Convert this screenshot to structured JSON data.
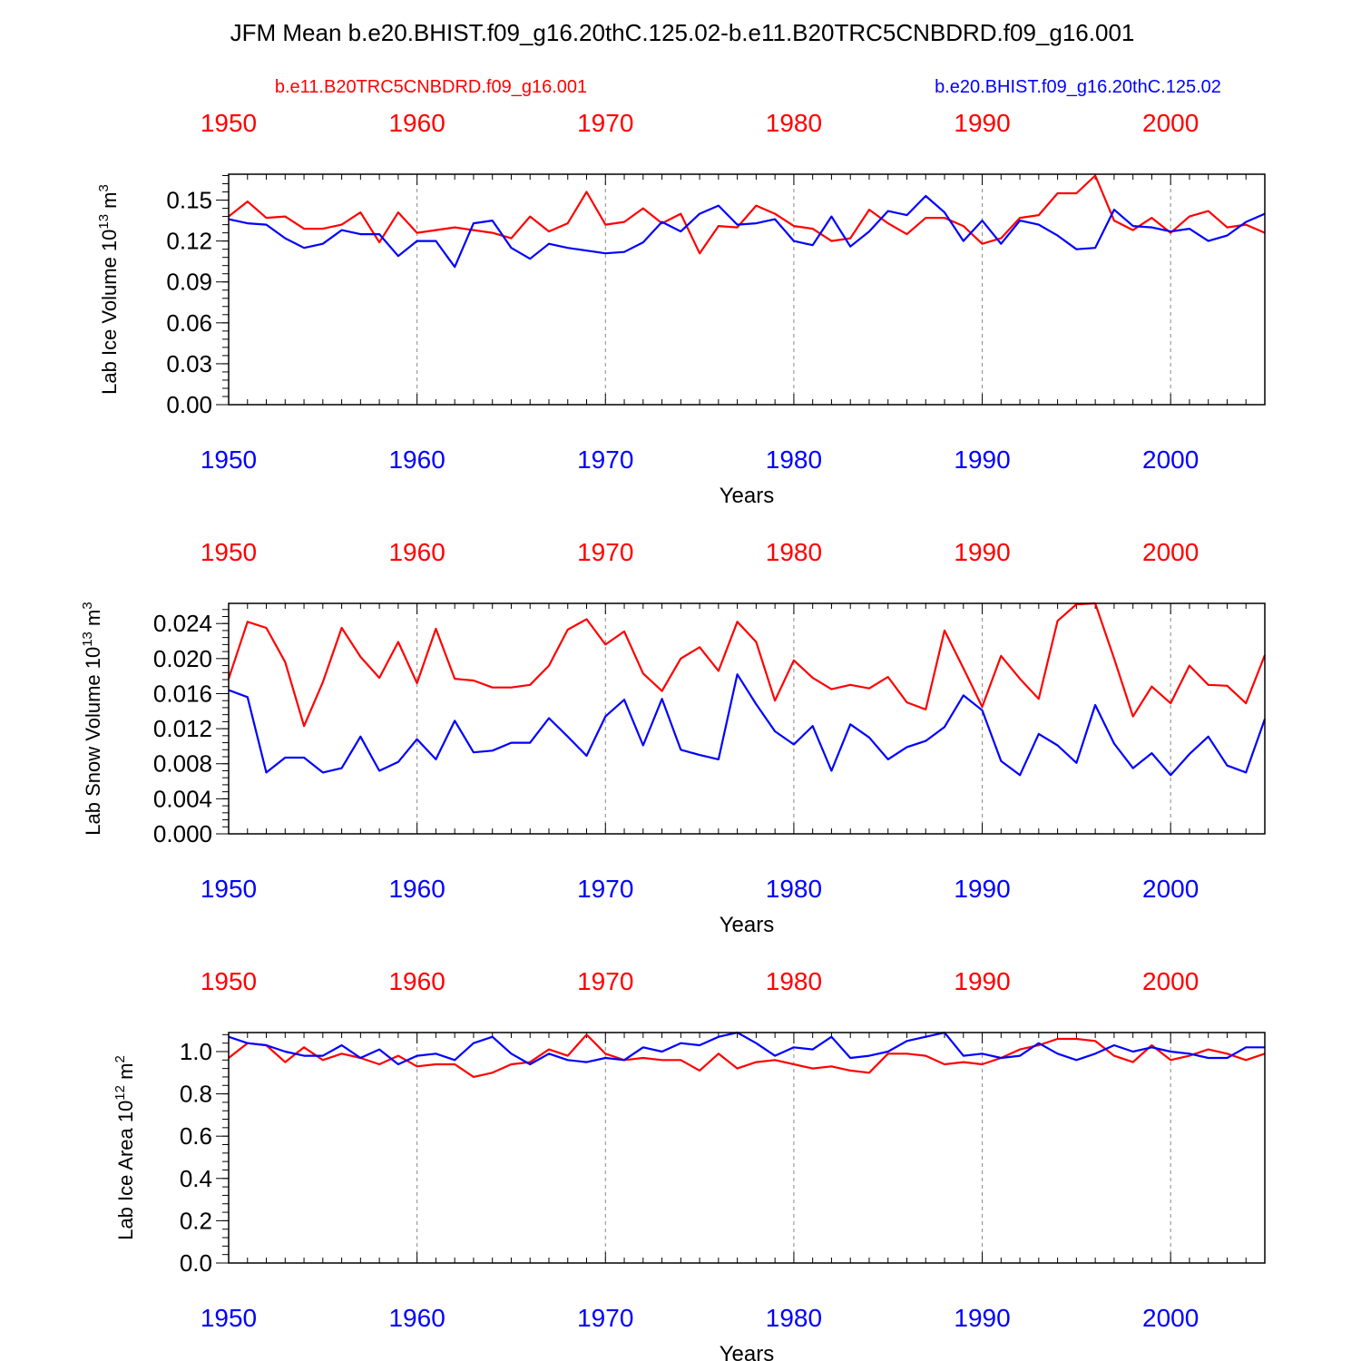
{
  "title": "JFM Mean b.e20.BHIST.f09_g16.20thC.125.02-b.e11.B20TRC5CNBDRD.f09_g16.001",
  "legend": {
    "left": {
      "label": "b.e11.B20TRC5CNBDRD.f09_g16.001",
      "color": "#ff0000"
    },
    "right": {
      "label": "b.e20.BHIST.f09_g16.20thC.125.02",
      "color": "#0000ff"
    }
  },
  "chart_data": [
    {
      "type": "line",
      "xlabel": "Years",
      "ylabel_text": "Lab Ice Volume 10",
      "ylabel_exp": "13",
      "ylabel_unit": " m",
      "ylabel_unit_exp": "3",
      "xlim": [
        1950,
        2005
      ],
      "ylim": [
        0.0,
        0.169
      ],
      "yticks": [
        0.0,
        0.03,
        0.06,
        0.09,
        0.12,
        0.15
      ],
      "ytick_labels": [
        "0.00",
        "0.03",
        "0.06",
        "0.09",
        "0.12",
        "0.15"
      ],
      "yminor_step": 0.006,
      "x_years": [
        1950,
        1951,
        1952,
        1953,
        1954,
        1955,
        1956,
        1957,
        1958,
        1959,
        1960,
        1961,
        1962,
        1963,
        1964,
        1965,
        1966,
        1967,
        1968,
        1969,
        1970,
        1971,
        1972,
        1973,
        1974,
        1975,
        1976,
        1977,
        1978,
        1979,
        1980,
        1981,
        1982,
        1983,
        1984,
        1985,
        1986,
        1987,
        1988,
        1989,
        1990,
        1991,
        1992,
        1993,
        1994,
        1995,
        1996,
        1997,
        1998,
        1999,
        2000,
        2001,
        2002,
        2003,
        2004,
        2005
      ],
      "series": [
        {
          "name": "b.e11.B20TRC5CNBDRD.f09_g16.001",
          "color": "#ff0000",
          "values": [
            0.138,
            0.149,
            0.137,
            0.138,
            0.129,
            0.129,
            0.132,
            0.141,
            0.119,
            0.141,
            0.126,
            0.128,
            0.13,
            0.128,
            0.126,
            0.122,
            0.138,
            0.127,
            0.133,
            0.156,
            0.132,
            0.134,
            0.144,
            0.133,
            0.14,
            0.111,
            0.131,
            0.13,
            0.146,
            0.14,
            0.131,
            0.129,
            0.12,
            0.122,
            0.143,
            0.133,
            0.125,
            0.137,
            0.137,
            0.131,
            0.118,
            0.122,
            0.137,
            0.139,
            0.155,
            0.155,
            0.168,
            0.135,
            0.128,
            0.137,
            0.126,
            0.138,
            0.142,
            0.13,
            0.132,
            0.126
          ]
        },
        {
          "name": "b.e20.BHIST.f09_g16.20thC.125.02",
          "color": "#0000ff",
          "values": [
            0.136,
            0.133,
            0.132,
            0.122,
            0.115,
            0.118,
            0.128,
            0.125,
            0.125,
            0.109,
            0.12,
            0.12,
            0.101,
            0.133,
            0.135,
            0.115,
            0.107,
            0.118,
            0.115,
            0.113,
            0.111,
            0.112,
            0.119,
            0.134,
            0.127,
            0.14,
            0.146,
            0.132,
            0.133,
            0.136,
            0.12,
            0.117,
            0.138,
            0.116,
            0.127,
            0.142,
            0.139,
            0.153,
            0.141,
            0.12,
            0.135,
            0.118,
            0.135,
            0.132,
            0.124,
            0.114,
            0.115,
            0.143,
            0.131,
            0.13,
            0.127,
            0.129,
            0.12,
            0.124,
            0.134,
            0.14
          ]
        }
      ]
    },
    {
      "type": "line",
      "xlabel": "Years",
      "ylabel_text": "Lab Snow Volume 10",
      "ylabel_exp": "13",
      "ylabel_unit": " m",
      "ylabel_unit_exp": "3",
      "xlim": [
        1950,
        2005
      ],
      "ylim": [
        0.0,
        0.0263
      ],
      "yticks": [
        0.0,
        0.004,
        0.008,
        0.012,
        0.016,
        0.02,
        0.024
      ],
      "ytick_labels": [
        "0.000",
        "0.004",
        "0.008",
        "0.012",
        "0.016",
        "0.020",
        "0.024"
      ],
      "yminor_step": 0.0008,
      "x_years": [
        1950,
        1951,
        1952,
        1953,
        1954,
        1955,
        1956,
        1957,
        1958,
        1959,
        1960,
        1961,
        1962,
        1963,
        1964,
        1965,
        1966,
        1967,
        1968,
        1969,
        1970,
        1971,
        1972,
        1973,
        1974,
        1975,
        1976,
        1977,
        1978,
        1979,
        1980,
        1981,
        1982,
        1983,
        1984,
        1985,
        1986,
        1987,
        1988,
        1989,
        1990,
        1991,
        1992,
        1993,
        1994,
        1995,
        1996,
        1997,
        1998,
        1999,
        2000,
        2001,
        2002,
        2003,
        2004,
        2005
      ],
      "series": [
        {
          "name": "b.e11.B20TRC5CNBDRD.f09_g16.001",
          "color": "#ff0000",
          "values": [
            0.0177,
            0.0242,
            0.0235,
            0.0196,
            0.0123,
            0.0173,
            0.0235,
            0.0202,
            0.0178,
            0.0219,
            0.0172,
            0.0234,
            0.0177,
            0.0175,
            0.0167,
            0.0167,
            0.017,
            0.0192,
            0.0233,
            0.0245,
            0.0216,
            0.0231,
            0.0183,
            0.0163,
            0.02,
            0.0213,
            0.0186,
            0.0242,
            0.0219,
            0.0152,
            0.0198,
            0.0178,
            0.0165,
            0.017,
            0.0166,
            0.0179,
            0.015,
            0.0142,
            0.0232,
            0.0189,
            0.0145,
            0.0203,
            0.0177,
            0.0154,
            0.0243,
            0.0262,
            0.0263,
            0.02,
            0.0134,
            0.0168,
            0.0149,
            0.0192,
            0.017,
            0.0169,
            0.0149,
            0.0204
          ]
        },
        {
          "name": "b.e20.BHIST.f09_g16.20thC.125.02",
          "color": "#0000ff",
          "values": [
            0.0164,
            0.0156,
            0.007,
            0.0087,
            0.0087,
            0.007,
            0.0075,
            0.0111,
            0.0072,
            0.0082,
            0.0108,
            0.0085,
            0.0129,
            0.0093,
            0.0095,
            0.0104,
            0.0104,
            0.0132,
            0.0111,
            0.0089,
            0.0134,
            0.0153,
            0.0101,
            0.0154,
            0.0096,
            0.009,
            0.0085,
            0.0182,
            0.0148,
            0.0117,
            0.0102,
            0.0123,
            0.0072,
            0.0125,
            0.011,
            0.0085,
            0.0099,
            0.0106,
            0.0122,
            0.0158,
            0.0141,
            0.0083,
            0.0067,
            0.0114,
            0.0101,
            0.0081,
            0.0147,
            0.0103,
            0.0075,
            0.0092,
            0.0067,
            0.0091,
            0.0111,
            0.0078,
            0.007,
            0.0131
          ]
        }
      ]
    },
    {
      "type": "line",
      "xlabel": "Years",
      "ylabel_text": "Lab Ice Area 10",
      "ylabel_exp": "12",
      "ylabel_unit": " m",
      "ylabel_unit_exp": "2",
      "xlim": [
        1950,
        2005
      ],
      "ylim": [
        0.0,
        1.09
      ],
      "yticks": [
        0.0,
        0.2,
        0.4,
        0.6,
        0.8,
        1.0
      ],
      "ytick_labels": [
        "0.0",
        "0.2",
        "0.4",
        "0.6",
        "0.8",
        "1.0"
      ],
      "yminor_step": 0.04,
      "x_years": [
        1950,
        1951,
        1952,
        1953,
        1954,
        1955,
        1956,
        1957,
        1958,
        1959,
        1960,
        1961,
        1962,
        1963,
        1964,
        1965,
        1966,
        1967,
        1968,
        1969,
        1970,
        1971,
        1972,
        1973,
        1974,
        1975,
        1976,
        1977,
        1978,
        1979,
        1980,
        1981,
        1982,
        1983,
        1984,
        1985,
        1986,
        1987,
        1988,
        1989,
        1990,
        1991,
        1992,
        1993,
        1994,
        1995,
        1996,
        1997,
        1998,
        1999,
        2000,
        2001,
        2002,
        2003,
        2004,
        2005
      ],
      "series": [
        {
          "name": "b.e11.B20TRC5CNBDRD.f09_g16.001",
          "color": "#ff0000",
          "values": [
            0.97,
            1.04,
            1.03,
            0.95,
            1.02,
            0.96,
            0.99,
            0.97,
            0.94,
            0.98,
            0.93,
            0.94,
            0.94,
            0.88,
            0.9,
            0.94,
            0.95,
            1.01,
            0.98,
            1.08,
            0.99,
            0.96,
            0.97,
            0.96,
            0.96,
            0.91,
            0.99,
            0.92,
            0.95,
            0.96,
            0.94,
            0.92,
            0.93,
            0.91,
            0.9,
            0.99,
            0.99,
            0.98,
            0.94,
            0.95,
            0.94,
            0.97,
            1.01,
            1.03,
            1.06,
            1.06,
            1.05,
            0.98,
            0.95,
            1.03,
            0.96,
            0.98,
            1.01,
            0.99,
            0.96,
            0.99
          ]
        },
        {
          "name": "b.e20.BHIST.f09_g16.20thC.125.02",
          "color": "#0000ff",
          "values": [
            1.07,
            1.04,
            1.03,
            1.0,
            0.98,
            0.98,
            1.03,
            0.97,
            1.01,
            0.94,
            0.98,
            0.99,
            0.96,
            1.04,
            1.07,
            0.99,
            0.94,
            0.99,
            0.96,
            0.95,
            0.97,
            0.96,
            1.02,
            1.0,
            1.04,
            1.03,
            1.07,
            1.09,
            1.04,
            0.98,
            1.02,
            1.01,
            1.07,
            0.97,
            0.98,
            1.0,
            1.05,
            1.07,
            1.09,
            0.98,
            0.99,
            0.97,
            0.98,
            1.04,
            0.99,
            0.96,
            0.99,
            1.03,
            1.0,
            1.02,
            1.0,
            0.99,
            0.97,
            0.97,
            1.02,
            1.02
          ]
        }
      ]
    }
  ]
}
